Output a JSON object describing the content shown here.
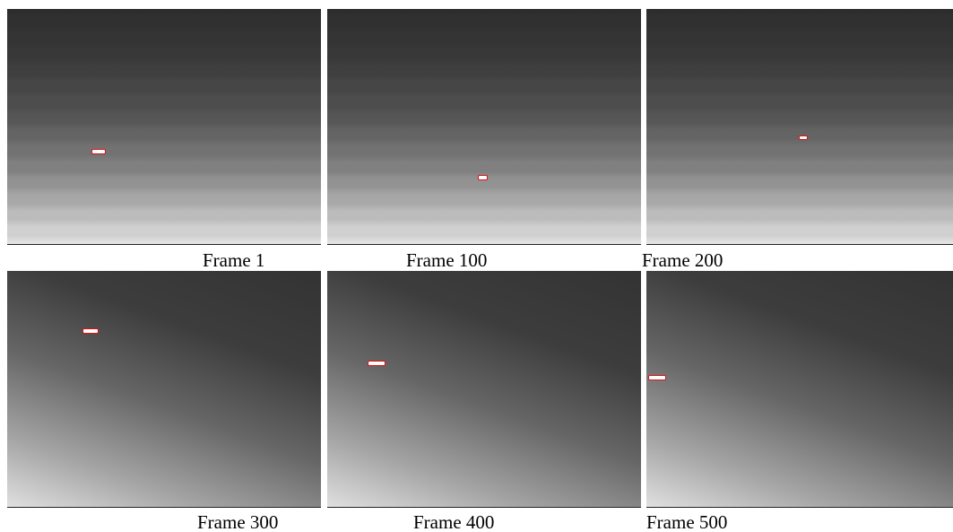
{
  "frames": [
    {
      "caption": "Frame 1"
    },
    {
      "caption": "Frame 100"
    },
    {
      "caption": "Frame 200"
    },
    {
      "caption": "Frame 300"
    },
    {
      "caption": "Frame 400"
    },
    {
      "caption": "Frame 500"
    }
  ]
}
